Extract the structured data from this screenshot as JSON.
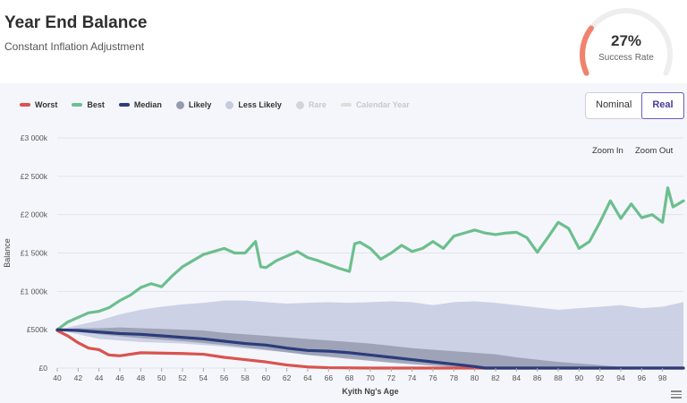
{
  "header": {
    "title": "Year End Balance",
    "subtitle": "Constant Inflation Adjustment"
  },
  "gauge": {
    "value_label": "27%",
    "fraction": 0.27,
    "label": "Success Rate",
    "color": "#f0826e",
    "track_color": "#eeeeee"
  },
  "legend": {
    "items": [
      {
        "label": "Worst",
        "kind": "line",
        "color": "#d9534f",
        "dim": false
      },
      {
        "label": "Best",
        "kind": "line",
        "color": "#6cbf8e",
        "dim": false
      },
      {
        "label": "Median",
        "kind": "line",
        "color": "#2b3c7a",
        "dim": false
      },
      {
        "label": "Likely",
        "kind": "dot",
        "color": "#959bb0",
        "dim": false
      },
      {
        "label": "Less Likely",
        "kind": "dot",
        "color": "#c5cae0",
        "dim": false
      },
      {
        "label": "Rare",
        "kind": "dot",
        "color": "#d4d4d8",
        "dim": true
      },
      {
        "label": "Calendar Year",
        "kind": "line",
        "color": "#dddddd",
        "dim": true
      }
    ]
  },
  "toggle": {
    "nominal_label": "Nominal",
    "real_label": "Real",
    "selected": "Real"
  },
  "zoom": {
    "in_label": "Zoom In",
    "out_label": "Zoom Out"
  },
  "chart_data": {
    "type": "line",
    "title": "",
    "xlabel": "Kyith Ng's Age",
    "ylabel": "Balance",
    "xlim": [
      40,
      100
    ],
    "ylim": [
      0,
      3000000
    ],
    "x_ticks": [
      40,
      42,
      44,
      46,
      48,
      50,
      52,
      54,
      56,
      58,
      60,
      62,
      64,
      66,
      68,
      70,
      72,
      74,
      76,
      78,
      80,
      82,
      84,
      86,
      88,
      90,
      92,
      94,
      96,
      98
    ],
    "y_ticks": [
      {
        "value": 0,
        "label": "£0"
      },
      {
        "value": 500000,
        "label": "£500k"
      },
      {
        "value": 1000000,
        "label": "£1 000k"
      },
      {
        "value": 1500000,
        "label": "£1 500k"
      },
      {
        "value": 2000000,
        "label": "£2 000k"
      },
      {
        "value": 2500000,
        "label": "£2 500k"
      },
      {
        "value": 3000000,
        "label": "£3 000k"
      }
    ],
    "series": [
      {
        "name": "Best",
        "color": "#6cbf8e",
        "points": [
          [
            40,
            500000
          ],
          [
            41,
            600000
          ],
          [
            42,
            660000
          ],
          [
            43,
            720000
          ],
          [
            44,
            740000
          ],
          [
            45,
            790000
          ],
          [
            46,
            880000
          ],
          [
            47,
            950000
          ],
          [
            48,
            1050000
          ],
          [
            49,
            1100000
          ],
          [
            50,
            1060000
          ],
          [
            51,
            1200000
          ],
          [
            52,
            1320000
          ],
          [
            53,
            1400000
          ],
          [
            54,
            1480000
          ],
          [
            55,
            1520000
          ],
          [
            56,
            1560000
          ],
          [
            57,
            1500000
          ],
          [
            58,
            1500000
          ],
          [
            59,
            1650000
          ],
          [
            59.5,
            1320000
          ],
          [
            60,
            1310000
          ],
          [
            61,
            1400000
          ],
          [
            62,
            1460000
          ],
          [
            63,
            1520000
          ],
          [
            64,
            1440000
          ],
          [
            65,
            1400000
          ],
          [
            66,
            1350000
          ],
          [
            67,
            1300000
          ],
          [
            68,
            1260000
          ],
          [
            68.5,
            1620000
          ],
          [
            69,
            1640000
          ],
          [
            70,
            1560000
          ],
          [
            71,
            1420000
          ],
          [
            72,
            1500000
          ],
          [
            73,
            1600000
          ],
          [
            74,
            1520000
          ],
          [
            75,
            1560000
          ],
          [
            76,
            1650000
          ],
          [
            77,
            1560000
          ],
          [
            78,
            1720000
          ],
          [
            79,
            1760000
          ],
          [
            80,
            1800000
          ],
          [
            81,
            1760000
          ],
          [
            82,
            1740000
          ],
          [
            83,
            1760000
          ],
          [
            84,
            1770000
          ],
          [
            85,
            1700000
          ],
          [
            86,
            1510000
          ],
          [
            87,
            1700000
          ],
          [
            88,
            1900000
          ],
          [
            89,
            1820000
          ],
          [
            90,
            1560000
          ],
          [
            91,
            1650000
          ],
          [
            92,
            1900000
          ],
          [
            93,
            2180000
          ],
          [
            94,
            1950000
          ],
          [
            95,
            2140000
          ],
          [
            96,
            1960000
          ],
          [
            97,
            2000000
          ],
          [
            98,
            1900000
          ],
          [
            98.5,
            2350000
          ],
          [
            99,
            2100000
          ],
          [
            100,
            2180000
          ]
        ]
      },
      {
        "name": "Worst",
        "color": "#d9534f",
        "points": [
          [
            40,
            490000
          ],
          [
            41,
            420000
          ],
          [
            42,
            330000
          ],
          [
            43,
            260000
          ],
          [
            44,
            240000
          ],
          [
            44.8,
            180000
          ],
          [
            45,
            170000
          ],
          [
            46,
            160000
          ],
          [
            48,
            200000
          ],
          [
            52,
            190000
          ],
          [
            54,
            180000
          ],
          [
            56,
            140000
          ],
          [
            58,
            110000
          ],
          [
            60,
            80000
          ],
          [
            62,
            40000
          ],
          [
            64,
            15000
          ],
          [
            66,
            5000
          ],
          [
            70,
            0
          ],
          [
            100,
            0
          ]
        ]
      },
      {
        "name": "Median",
        "color": "#2b3c7a",
        "points": [
          [
            40,
            500000
          ],
          [
            42,
            490000
          ],
          [
            44,
            470000
          ],
          [
            46,
            450000
          ],
          [
            48,
            440000
          ],
          [
            50,
            420000
          ],
          [
            52,
            400000
          ],
          [
            54,
            380000
          ],
          [
            56,
            350000
          ],
          [
            58,
            320000
          ],
          [
            60,
            300000
          ],
          [
            62,
            260000
          ],
          [
            64,
            230000
          ],
          [
            66,
            220000
          ],
          [
            68,
            200000
          ],
          [
            70,
            170000
          ],
          [
            72,
            140000
          ],
          [
            74,
            110000
          ],
          [
            76,
            80000
          ],
          [
            78,
            50000
          ],
          [
            80,
            20000
          ],
          [
            81,
            0
          ],
          [
            100,
            0
          ]
        ]
      }
    ],
    "bands": [
      {
        "name": "Less Likely",
        "color": "#c5cae0",
        "upper": [
          [
            40,
            500000
          ],
          [
            42,
            560000
          ],
          [
            44,
            620000
          ],
          [
            46,
            700000
          ],
          [
            48,
            760000
          ],
          [
            50,
            800000
          ],
          [
            52,
            830000
          ],
          [
            54,
            850000
          ],
          [
            56,
            880000
          ],
          [
            58,
            880000
          ],
          [
            60,
            860000
          ],
          [
            62,
            840000
          ],
          [
            64,
            850000
          ],
          [
            66,
            860000
          ],
          [
            68,
            850000
          ],
          [
            70,
            860000
          ],
          [
            72,
            870000
          ],
          [
            74,
            860000
          ],
          [
            76,
            820000
          ],
          [
            78,
            860000
          ],
          [
            80,
            870000
          ],
          [
            82,
            850000
          ],
          [
            84,
            820000
          ],
          [
            86,
            790000
          ],
          [
            88,
            760000
          ],
          [
            90,
            780000
          ],
          [
            92,
            800000
          ],
          [
            94,
            820000
          ],
          [
            96,
            780000
          ],
          [
            98,
            800000
          ],
          [
            100,
            860000
          ]
        ],
        "lower": [
          [
            40,
            500000
          ],
          [
            44,
            380000
          ],
          [
            48,
            340000
          ],
          [
            52,
            320000
          ],
          [
            56,
            280000
          ],
          [
            60,
            230000
          ],
          [
            64,
            180000
          ],
          [
            68,
            140000
          ],
          [
            72,
            100000
          ],
          [
            76,
            60000
          ],
          [
            80,
            20000
          ],
          [
            84,
            0
          ],
          [
            100,
            0
          ]
        ]
      },
      {
        "name": "Likely",
        "color": "#959bb0",
        "upper": [
          [
            40,
            500000
          ],
          [
            42,
            520000
          ],
          [
            44,
            520000
          ],
          [
            46,
            530000
          ],
          [
            48,
            520000
          ],
          [
            50,
            510000
          ],
          [
            52,
            500000
          ],
          [
            54,
            490000
          ],
          [
            56,
            460000
          ],
          [
            58,
            440000
          ],
          [
            60,
            420000
          ],
          [
            62,
            400000
          ],
          [
            64,
            380000
          ],
          [
            66,
            360000
          ],
          [
            68,
            340000
          ],
          [
            70,
            320000
          ],
          [
            72,
            290000
          ],
          [
            74,
            260000
          ],
          [
            76,
            240000
          ],
          [
            78,
            220000
          ],
          [
            80,
            200000
          ],
          [
            82,
            180000
          ],
          [
            84,
            140000
          ],
          [
            86,
            110000
          ],
          [
            88,
            80000
          ],
          [
            90,
            60000
          ],
          [
            92,
            40000
          ],
          [
            94,
            15000
          ],
          [
            96,
            0
          ],
          [
            100,
            0
          ]
        ],
        "lower": [
          [
            40,
            500000
          ],
          [
            44,
            440000
          ],
          [
            48,
            390000
          ],
          [
            52,
            350000
          ],
          [
            56,
            300000
          ],
          [
            60,
            240000
          ],
          [
            64,
            170000
          ],
          [
            68,
            120000
          ],
          [
            72,
            70000
          ],
          [
            76,
            30000
          ],
          [
            80,
            0
          ],
          [
            100,
            0
          ]
        ]
      }
    ],
    "grid": true,
    "legend_position": "top-left"
  }
}
